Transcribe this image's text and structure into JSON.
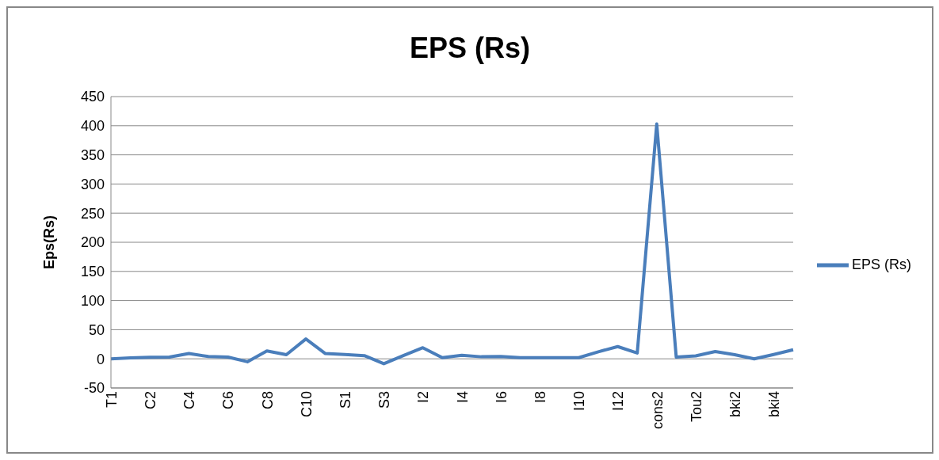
{
  "chart_data": {
    "type": "line",
    "title": "EPS (Rs)",
    "ylabel": "Eps(Rs)",
    "categories": [
      "T1",
      null,
      "C2",
      null,
      "C4",
      null,
      "C6",
      null,
      "C8",
      null,
      "C10",
      null,
      "S1",
      null,
      "S3",
      null,
      "I2",
      null,
      "I4",
      null,
      "I6",
      null,
      "I8",
      null,
      "I10",
      null,
      "I12",
      null,
      "cons2",
      null,
      "Tou2",
      null,
      "bki2",
      null,
      "bki4",
      null
    ],
    "series": [
      {
        "name": "EPS (Rs)",
        "color": "#4a7ebb",
        "values": [
          0,
          1.5,
          2.5,
          3,
          9,
          4,
          3,
          -5,
          13.5,
          7,
          34,
          9,
          7.5,
          5.5,
          -8.5,
          5.5,
          19,
          2,
          6,
          3.5,
          4,
          2,
          2,
          2,
          2,
          12,
          21,
          10,
          403,
          3,
          5,
          12.5,
          7,
          0,
          7.5,
          15.5
        ]
      }
    ],
    "ylim": [
      -50,
      450
    ],
    "yticks": [
      -50,
      0,
      50,
      100,
      150,
      200,
      250,
      300,
      350,
      400,
      450
    ],
    "grid": "y",
    "legend": "right",
    "marker": "none",
    "line_style": "solid"
  }
}
